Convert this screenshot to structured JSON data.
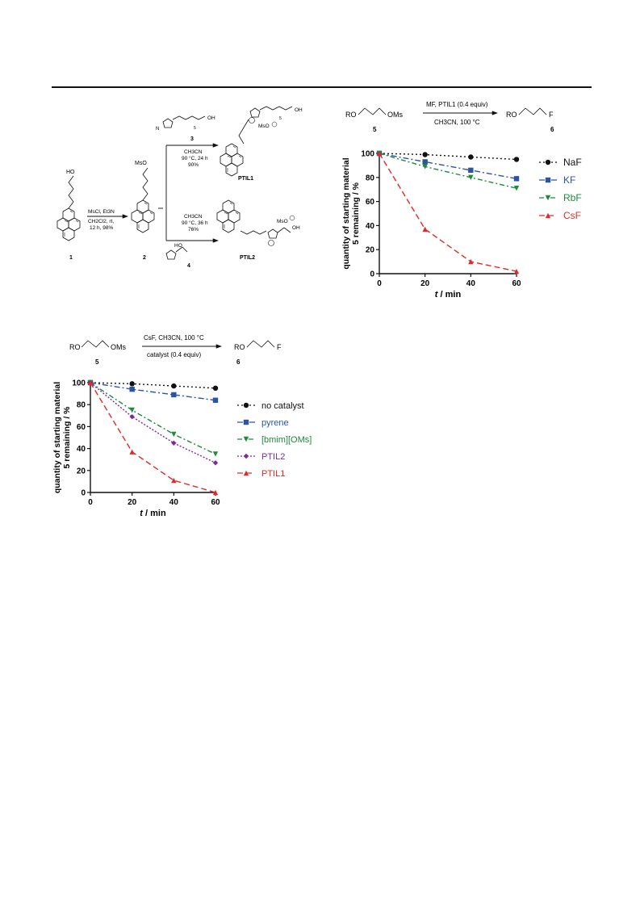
{
  "scheme_top": {
    "compound_1": "1",
    "compound_2": "2",
    "compound_3": "3",
    "compound_4": "4",
    "ptil1": "PTIL1",
    "ptil2": "PTIL2",
    "ho": "HO",
    "mso": "MsO",
    "oh": "OH",
    "mso_anion": "MsO",
    "five": "5",
    "step1_line1": "MsCl, Et3N",
    "step1_line2": "CH2Cl2, rt,",
    "step1_line3": "12 h, 98%",
    "upper_line1": "CH3CN",
    "upper_line2": "90 °C, 24 h",
    "upper_line3": "90%",
    "lower_line1": "CH3CN",
    "lower_line2": "90 °C, 36 h",
    "lower_line3": "76%",
    "n_label": "N"
  },
  "scheme_r1": {
    "reactant": "RO",
    "reactant_group": "OMs",
    "reactant_num": "5",
    "above_arrow": "MF, PTIL1 (0.4 equiv)",
    "below_arrow": "CH3CN, 100 °C",
    "product": "RO",
    "product_group": "F",
    "product_num": "6"
  },
  "scheme_r2": {
    "reactant": "RO",
    "reactant_group": "OMs",
    "reactant_num": "5",
    "above_arrow": "CsF, CH3CN, 100 °C",
    "below_arrow": "catalyst (0.4 equiv)",
    "product": "RO",
    "product_group": "F",
    "product_num": "6"
  },
  "chart_data": [
    {
      "type": "line",
      "xlabel_italic": "t",
      "xlabel_rest": " / min",
      "ylabel_line1": "quantity of starting material",
      "ylabel_line2": "5 remaining / %",
      "x": [
        0,
        20,
        40,
        60
      ],
      "xlim": [
        0,
        60
      ],
      "ylim": [
        0,
        100
      ],
      "yticks": [
        "0",
        "20",
        "40",
        "60",
        "80",
        "100"
      ],
      "xticks": [
        "0",
        "20",
        "40",
        "60"
      ],
      "legend_position": "right",
      "series": [
        {
          "name": "NaF",
          "values": [
            100,
            99,
            97,
            95
          ],
          "color": "#111111",
          "marker": "circle",
          "dash": "2,3"
        },
        {
          "name": "KF",
          "values": [
            100,
            93,
            86,
            79
          ],
          "color": "#2c54a3",
          "marker": "square",
          "dash": "7,3,2,3"
        },
        {
          "name": "RbF",
          "values": [
            100,
            89,
            80,
            71
          ],
          "color": "#1e8a3c",
          "marker": "triangle-down",
          "dash": "6,3,2,3"
        },
        {
          "name": "CsF",
          "values": [
            100,
            37,
            10,
            2
          ],
          "color": "#e02a2a",
          "marker": "triangle-up",
          "dash": "7,4"
        }
      ]
    },
    {
      "type": "line",
      "xlabel_italic": "t",
      "xlabel_rest": " / min",
      "ylabel_line1": "quantity of starting material",
      "ylabel_line2": "5 remaining / %",
      "x": [
        0,
        20,
        40,
        60
      ],
      "xlim": [
        0,
        60
      ],
      "ylim": [
        0,
        100
      ],
      "yticks": [
        "0",
        "20",
        "40",
        "60",
        "80",
        "100"
      ],
      "xticks": [
        "0",
        "20",
        "40",
        "60"
      ],
      "legend_position": "right",
      "series": [
        {
          "name": "no catalyst",
          "values": [
            100,
            99,
            97,
            95
          ],
          "color": "#111111",
          "marker": "circle",
          "dash": "2,3"
        },
        {
          "name": "pyrene",
          "values": [
            100,
            94,
            89,
            84
          ],
          "color": "#2c54a3",
          "marker": "square",
          "dash": "7,3,2,3"
        },
        {
          "name": "[bmim][OMs]",
          "values": [
            100,
            75,
            53,
            35
          ],
          "color": "#1e8a3c",
          "marker": "triangle-down",
          "dash": "6,3,2,3"
        },
        {
          "name": "PTIL2",
          "values": [
            100,
            69,
            45,
            27
          ],
          "color": "#7b2a9a",
          "marker": "diamond",
          "dash": "2,2"
        },
        {
          "name": "PTIL1",
          "values": [
            100,
            37,
            11,
            0
          ],
          "color": "#e02a2a",
          "marker": "triangle-up",
          "dash": "7,4"
        }
      ]
    }
  ]
}
